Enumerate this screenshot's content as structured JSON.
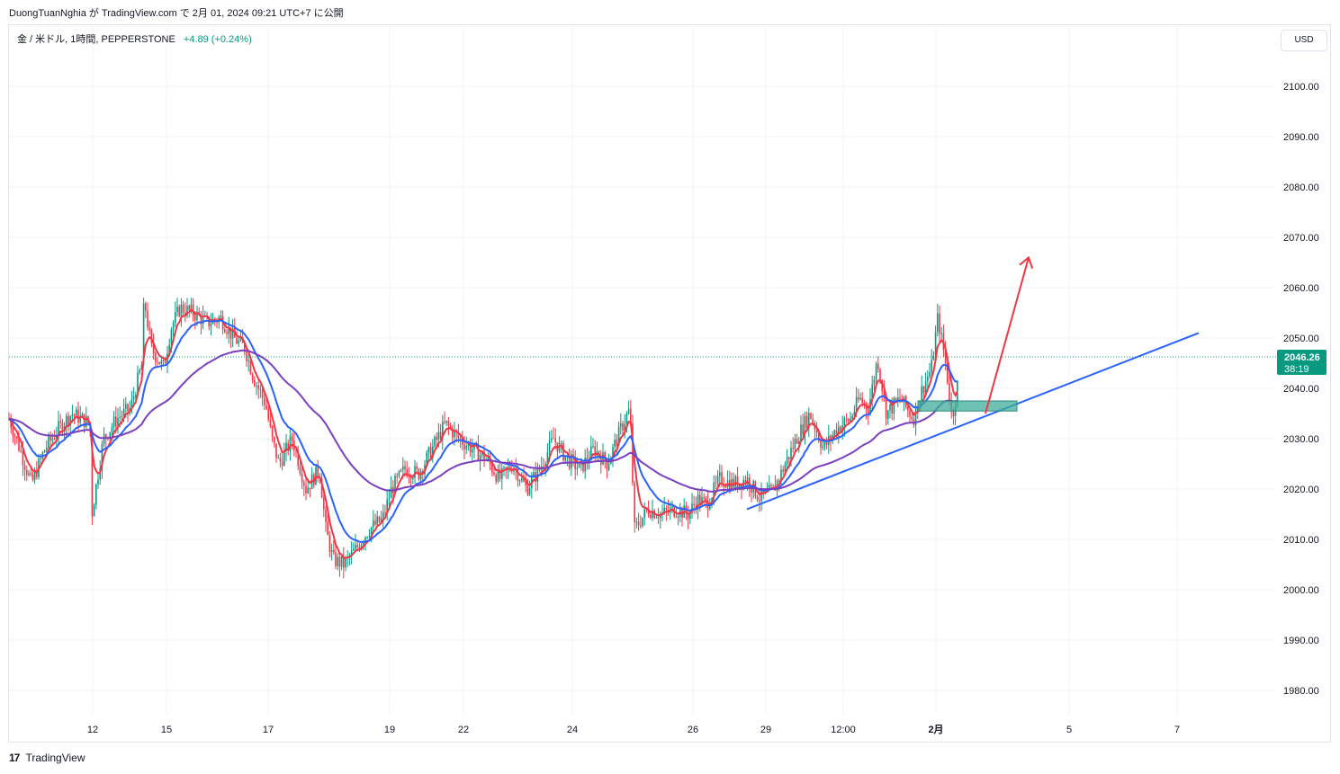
{
  "caption": "DuongTuanNghia が TradingView.com で 2月 01, 2024 09:21 UTC+7 に公開",
  "symbol": {
    "name": "金 / 米ドル, 1時間, PEPPERSTONE",
    "change": "+4.89 (+0.24%)"
  },
  "currency_button": "USD",
  "brand": {
    "logo": "17",
    "name": "TradingView"
  },
  "colors": {
    "up": "#089981",
    "down": "#f23645",
    "ema_fast": "#f23645",
    "ema_mid": "#2962ff",
    "ema_slow": "#7b3fbf",
    "trendline": "#2962ff",
    "arrow": "#f23645",
    "zone": "#3fae9a"
  },
  "chart_data": {
    "type": "candlestick",
    "ylim": [
      1974,
      2107
    ],
    "y_ticks": [
      "2100.00",
      "2090.00",
      "2080.00",
      "2070.00",
      "2060.00",
      "2050.00",
      "2040.00",
      "2030.00",
      "2020.00",
      "2010.00",
      "2000.00",
      "1990.00",
      "1980.00"
    ],
    "y_tick_values": [
      2100,
      2090,
      2080,
      2070,
      2060,
      2050,
      2040,
      2030,
      2020,
      2010,
      2000,
      1990,
      1980
    ],
    "x_ticks": [
      "12",
      "15",
      "17",
      "19",
      "22",
      "24",
      "26",
      "29",
      "12:00",
      "2月",
      "5",
      "7"
    ],
    "last_price": "2046.26",
    "countdown": "38:19",
    "price_path": [
      [
        0,
        2034
      ],
      [
        12,
        2028
      ],
      [
        25,
        2021
      ],
      [
        40,
        2028
      ],
      [
        55,
        2032
      ],
      [
        70,
        2035
      ],
      [
        90,
        2033
      ],
      [
        92,
        2015
      ],
      [
        105,
        2030
      ],
      [
        120,
        2034
      ],
      [
        135,
        2036
      ],
      [
        148,
        2045
      ],
      [
        150,
        2058
      ],
      [
        158,
        2048
      ],
      [
        172,
        2044
      ],
      [
        180,
        2052
      ],
      [
        190,
        2056
      ],
      [
        205,
        2055
      ],
      [
        220,
        2053
      ],
      [
        235,
        2054
      ],
      [
        250,
        2050
      ],
      [
        262,
        2048
      ],
      [
        272,
        2042
      ],
      [
        285,
        2037
      ],
      [
        292,
        2030
      ],
      [
        300,
        2025
      ],
      [
        315,
        2030
      ],
      [
        330,
        2020
      ],
      [
        345,
        2024
      ],
      [
        352,
        2012
      ],
      [
        360,
        2006
      ],
      [
        372,
        2005
      ],
      [
        385,
        2008
      ],
      [
        400,
        2012
      ],
      [
        415,
        2014
      ],
      [
        425,
        2020
      ],
      [
        440,
        2024
      ],
      [
        455,
        2023
      ],
      [
        470,
        2028
      ],
      [
        485,
        2033
      ],
      [
        500,
        2030
      ],
      [
        515,
        2028
      ],
      [
        530,
        2026
      ],
      [
        545,
        2022
      ],
      [
        560,
        2025
      ],
      [
        575,
        2020
      ],
      [
        590,
        2024
      ],
      [
        605,
        2030
      ],
      [
        620,
        2026
      ],
      [
        635,
        2024
      ],
      [
        650,
        2028
      ],
      [
        665,
        2025
      ],
      [
        680,
        2032
      ],
      [
        690,
        2036
      ],
      [
        695,
        2012
      ],
      [
        710,
        2016
      ],
      [
        725,
        2015
      ],
      [
        740,
        2016
      ],
      [
        755,
        2015
      ],
      [
        765,
        2018
      ],
      [
        775,
        2017
      ],
      [
        790,
        2022
      ],
      [
        805,
        2021
      ],
      [
        820,
        2022
      ],
      [
        835,
        2018
      ],
      [
        850,
        2020
      ],
      [
        860,
        2024
      ],
      [
        875,
        2030
      ],
      [
        890,
        2035
      ],
      [
        905,
        2028
      ],
      [
        920,
        2032
      ],
      [
        935,
        2034
      ],
      [
        945,
        2038
      ],
      [
        955,
        2036
      ],
      [
        965,
        2046
      ],
      [
        975,
        2035
      ],
      [
        990,
        2038
      ],
      [
        1005,
        2034
      ],
      [
        1015,
        2040
      ],
      [
        1025,
        2044
      ],
      [
        1032,
        2054
      ],
      [
        1040,
        2046
      ],
      [
        1048,
        2034
      ],
      [
        1055,
        2042
      ],
      [
        1062,
        2046
      ]
    ],
    "trendline": [
      [
        830,
        2016
      ],
      [
        1332,
        2051
      ]
    ],
    "support_zone": {
      "x0": 1020,
      "x1": 1130,
      "y0": 2035.5,
      "y1": 2037.5
    },
    "arrow": {
      "from": [
        1095,
        2035
      ],
      "to": [
        1143,
        2066
      ]
    }
  }
}
